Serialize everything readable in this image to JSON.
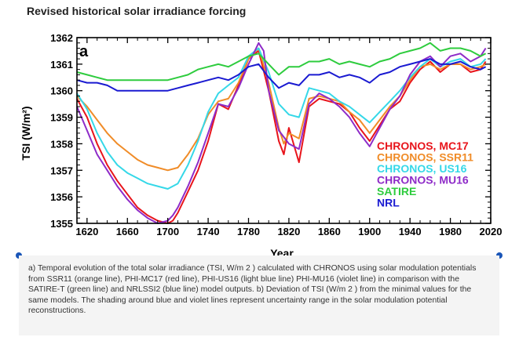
{
  "page": {
    "title": "Revised historical solar irradiance forcing",
    "caption": "a) Temporal evolution of the total solar irradiance (TSI, W/m 2 ) calculated with CHRONOS using solar modulation potentials from SSR11 (orange line), PHI-MC17 (red line), PHI-US16 (light blue line) PHI-MU16 (violet line) in comparison with the SATIRE-T (green line) and NRLSSI2 (blue line) model outputs. b) Deviation of TSI (W/m 2 ) from the minimal values for the same models. The shading around blue and violet lines represent uncertainty range in the solar modulation potential reconstructions."
  },
  "chart_data": {
    "type": "line",
    "panel_label": "a",
    "xlabel": "Year",
    "ylabel": "TSI (W/m²)",
    "xlim": [
      1610,
      2020
    ],
    "ylim": [
      1355,
      1362
    ],
    "xticks": [
      1620,
      1660,
      1700,
      1740,
      1780,
      1820,
      1860,
      1900,
      1940,
      1980,
      2020
    ],
    "yticks": [
      1355,
      1356,
      1357,
      1358,
      1359,
      1360,
      1361,
      1362
    ],
    "grid": false,
    "legend_position": "lower-right",
    "series": [
      {
        "name": "CHRONOS, MC17",
        "color": "#e8141b",
        "x": [
          1610,
          1620,
          1630,
          1640,
          1650,
          1660,
          1670,
          1680,
          1690,
          1700,
          1705,
          1710,
          1720,
          1730,
          1740,
          1750,
          1760,
          1770,
          1780,
          1790,
          1800,
          1810,
          1815,
          1820,
          1830,
          1840,
          1850,
          1860,
          1870,
          1880,
          1890,
          1900,
          1910,
          1920,
          1930,
          1940,
          1950,
          1960,
          1970,
          1980,
          1990,
          2000,
          2010,
          2015
        ],
        "y": [
          1359.7,
          1359.0,
          1358.0,
          1357.2,
          1356.6,
          1356.1,
          1355.6,
          1355.3,
          1355.1,
          1355.0,
          1355.1,
          1355.4,
          1356.2,
          1357.0,
          1358.1,
          1359.5,
          1359.3,
          1360.2,
          1361.2,
          1361.5,
          1360.0,
          1358.1,
          1357.6,
          1358.6,
          1357.3,
          1359.4,
          1359.7,
          1359.6,
          1359.5,
          1359.2,
          1358.6,
          1358.1,
          1358.7,
          1359.3,
          1359.6,
          1360.3,
          1360.8,
          1361.1,
          1360.7,
          1361.0,
          1361.0,
          1360.7,
          1360.8,
          1361.1
        ]
      },
      {
        "name": "CHRONOS, SSR11",
        "color": "#f08c28",
        "x": [
          1610,
          1620,
          1630,
          1640,
          1650,
          1660,
          1670,
          1680,
          1690,
          1700,
          1710,
          1720,
          1730,
          1740,
          1750,
          1760,
          1770,
          1780,
          1790,
          1800,
          1810,
          1815,
          1820,
          1830,
          1840,
          1850,
          1860,
          1870,
          1880,
          1890,
          1900,
          1910,
          1920,
          1930,
          1940,
          1950,
          1960,
          1970,
          1980,
          1990,
          2000,
          2010,
          2015
        ],
        "y": [
          1359.8,
          1359.4,
          1358.9,
          1358.4,
          1358.0,
          1357.7,
          1357.4,
          1357.2,
          1357.1,
          1357.0,
          1357.1,
          1357.6,
          1358.2,
          1359.1,
          1359.6,
          1359.7,
          1360.3,
          1361.2,
          1361.6,
          1360.3,
          1358.6,
          1358.0,
          1358.4,
          1358.2,
          1359.7,
          1359.8,
          1359.7,
          1359.6,
          1359.2,
          1358.9,
          1358.4,
          1358.9,
          1359.4,
          1359.8,
          1360.4,
          1360.9,
          1361.0,
          1360.8,
          1361.0,
          1361.0,
          1360.8,
          1360.9,
          1361.0
        ]
      },
      {
        "name": "CHRONOS, US16",
        "color": "#35d8e8",
        "x": [
          1610,
          1620,
          1630,
          1640,
          1650,
          1660,
          1670,
          1680,
          1690,
          1700,
          1710,
          1720,
          1730,
          1740,
          1750,
          1760,
          1770,
          1780,
          1790,
          1800,
          1810,
          1820,
          1830,
          1840,
          1850,
          1860,
          1870,
          1880,
          1890,
          1900,
          1910,
          1920,
          1930,
          1940,
          1950,
          1960,
          1970,
          1980,
          1990,
          2000,
          2010,
          2015
        ],
        "y": [
          1359.9,
          1359.3,
          1358.4,
          1357.7,
          1357.2,
          1356.9,
          1356.7,
          1356.5,
          1356.4,
          1356.3,
          1356.5,
          1357.2,
          1358.1,
          1359.2,
          1359.9,
          1360.2,
          1360.5,
          1361.3,
          1361.6,
          1360.7,
          1359.5,
          1359.1,
          1359.0,
          1360.1,
          1360.0,
          1359.9,
          1359.6,
          1359.4,
          1359.1,
          1358.8,
          1359.2,
          1359.6,
          1360.0,
          1360.5,
          1360.9,
          1361.2,
          1360.9,
          1361.1,
          1361.2,
          1360.9,
          1361.0,
          1361.2
        ]
      },
      {
        "name": "CHRONOS, MU16",
        "color": "#8e2bc8",
        "x": [
          1610,
          1620,
          1630,
          1640,
          1650,
          1660,
          1670,
          1680,
          1690,
          1700,
          1705,
          1710,
          1720,
          1730,
          1740,
          1750,
          1760,
          1770,
          1780,
          1790,
          1795,
          1800,
          1810,
          1820,
          1830,
          1840,
          1850,
          1860,
          1870,
          1880,
          1890,
          1900,
          1910,
          1920,
          1930,
          1940,
          1950,
          1960,
          1970,
          1980,
          1990,
          2000,
          2010,
          2015
        ],
        "y": [
          1359.4,
          1358.5,
          1357.6,
          1357.0,
          1356.4,
          1355.9,
          1355.5,
          1355.2,
          1355.0,
          1355.1,
          1355.3,
          1355.6,
          1356.4,
          1357.3,
          1358.4,
          1359.5,
          1359.4,
          1360.1,
          1361.0,
          1361.8,
          1361.5,
          1360.0,
          1358.5,
          1358.0,
          1357.8,
          1359.5,
          1359.9,
          1359.7,
          1359.4,
          1359.0,
          1358.4,
          1357.9,
          1358.6,
          1359.3,
          1359.8,
          1360.6,
          1361.1,
          1361.3,
          1360.9,
          1361.3,
          1361.4,
          1361.1,
          1361.3,
          1361.6
        ]
      },
      {
        "name": "SATIRE",
        "color": "#2ecc3e",
        "x": [
          1610,
          1620,
          1630,
          1640,
          1650,
          1660,
          1670,
          1680,
          1690,
          1700,
          1710,
          1720,
          1730,
          1740,
          1750,
          1760,
          1770,
          1780,
          1790,
          1800,
          1810,
          1820,
          1830,
          1840,
          1850,
          1860,
          1870,
          1880,
          1890,
          1900,
          1910,
          1920,
          1930,
          1940,
          1950,
          1960,
          1970,
          1980,
          1990,
          2000,
          2010,
          2015
        ],
        "y": [
          1360.7,
          1360.6,
          1360.5,
          1360.4,
          1360.4,
          1360.4,
          1360.4,
          1360.4,
          1360.4,
          1360.4,
          1360.5,
          1360.6,
          1360.8,
          1360.9,
          1361.0,
          1360.9,
          1361.1,
          1361.3,
          1361.4,
          1361.0,
          1360.6,
          1360.9,
          1360.9,
          1361.1,
          1361.1,
          1361.2,
          1361.0,
          1361.1,
          1361.0,
          1360.9,
          1361.1,
          1361.2,
          1361.4,
          1361.5,
          1361.6,
          1361.8,
          1361.5,
          1361.6,
          1361.6,
          1361.5,
          1361.3,
          1361.4
        ]
      },
      {
        "name": "NRL",
        "color": "#1a1ad1",
        "x": [
          1610,
          1620,
          1630,
          1640,
          1650,
          1660,
          1670,
          1680,
          1690,
          1700,
          1710,
          1720,
          1730,
          1740,
          1750,
          1760,
          1770,
          1780,
          1790,
          1800,
          1810,
          1820,
          1830,
          1840,
          1850,
          1860,
          1870,
          1880,
          1890,
          1900,
          1910,
          1920,
          1930,
          1940,
          1950,
          1960,
          1970,
          1980,
          1990,
          2000,
          2010,
          2015
        ],
        "y": [
          1360.4,
          1360.3,
          1360.3,
          1360.2,
          1360.0,
          1360.0,
          1360.0,
          1360.0,
          1360.0,
          1360.0,
          1360.1,
          1360.2,
          1360.3,
          1360.4,
          1360.5,
          1360.4,
          1360.6,
          1360.9,
          1361.0,
          1360.5,
          1360.1,
          1360.3,
          1360.2,
          1360.6,
          1360.6,
          1360.7,
          1360.5,
          1360.6,
          1360.5,
          1360.3,
          1360.6,
          1360.7,
          1360.9,
          1361.0,
          1361.1,
          1361.2,
          1361.0,
          1361.0,
          1361.1,
          1360.9,
          1360.8,
          1360.9
        ]
      }
    ]
  }
}
